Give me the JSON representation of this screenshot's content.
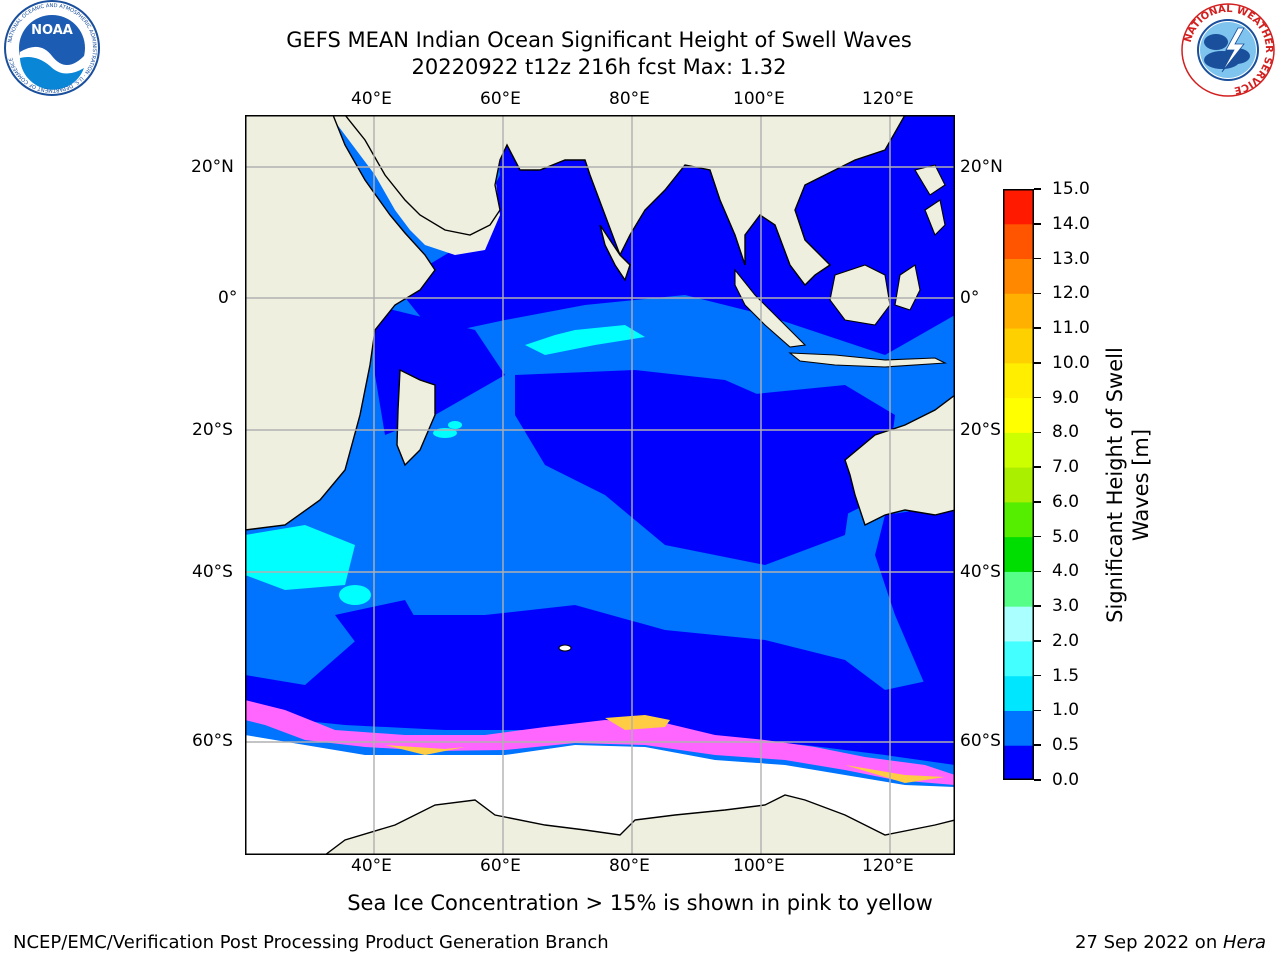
{
  "header": {
    "title_line1": "GEFS MEAN Indian Ocean Significant Height of Swell Waves",
    "title_line2": "20220922 t12z 216h fcst   Max: 1.32",
    "left_logo_text": "NOAA",
    "left_logo_ring": "NATIONAL OCEANIC AND ATMOSPHERIC ADMINISTRATION · U.S. DEPARTMENT OF COMMERCE",
    "right_logo_ring": "NATIONAL WEATHER SERVICE"
  },
  "map": {
    "lon_labels": [
      "40°E",
      "60°E",
      "80°E",
      "100°E",
      "120°E"
    ],
    "lat_labels": [
      "20°N",
      "0°",
      "20°S",
      "40°S",
      "60°S"
    ],
    "extent": {
      "lon": [
        20,
        130
      ],
      "lat": [
        -70,
        28
      ]
    },
    "colors": {
      "land": "#efefdf",
      "ice": "#ffffff",
      "deep_blue": "#0000ff",
      "mid_blue": "#0073ff",
      "cyan": "#00ffff",
      "pink": "#ff66ff",
      "ice_yellow": "#ffcc44",
      "grid": "#b0b0b0"
    }
  },
  "colorbar": {
    "label": "Significant Height of Swell Waves [m]",
    "ticks": [
      "0.0",
      "0.5",
      "1.0",
      "1.5",
      "2.0",
      "3.0",
      "4.0",
      "5.0",
      "6.0",
      "7.0",
      "8.0",
      "9.0",
      "10.0",
      "11.0",
      "12.0",
      "13.0",
      "14.0",
      "15.0"
    ],
    "colors": [
      "#0000ff",
      "#0073ff",
      "#00e6ff",
      "#44ffff",
      "#aaffff",
      "#55ff88",
      "#00dd00",
      "#55ee00",
      "#aaee00",
      "#ccff00",
      "#ffff00",
      "#ffee00",
      "#ffd000",
      "#ffb000",
      "#ff8800",
      "#ff5500",
      "#ff1a00"
    ]
  },
  "footer": {
    "caption": "Sea Ice Concentration > 15% is shown in pink to yellow",
    "left": "NCEP/EMC/Verification Post Processing Product Generation Branch",
    "right_prefix": "27 Sep 2022 on ",
    "right_host": "Hera"
  }
}
